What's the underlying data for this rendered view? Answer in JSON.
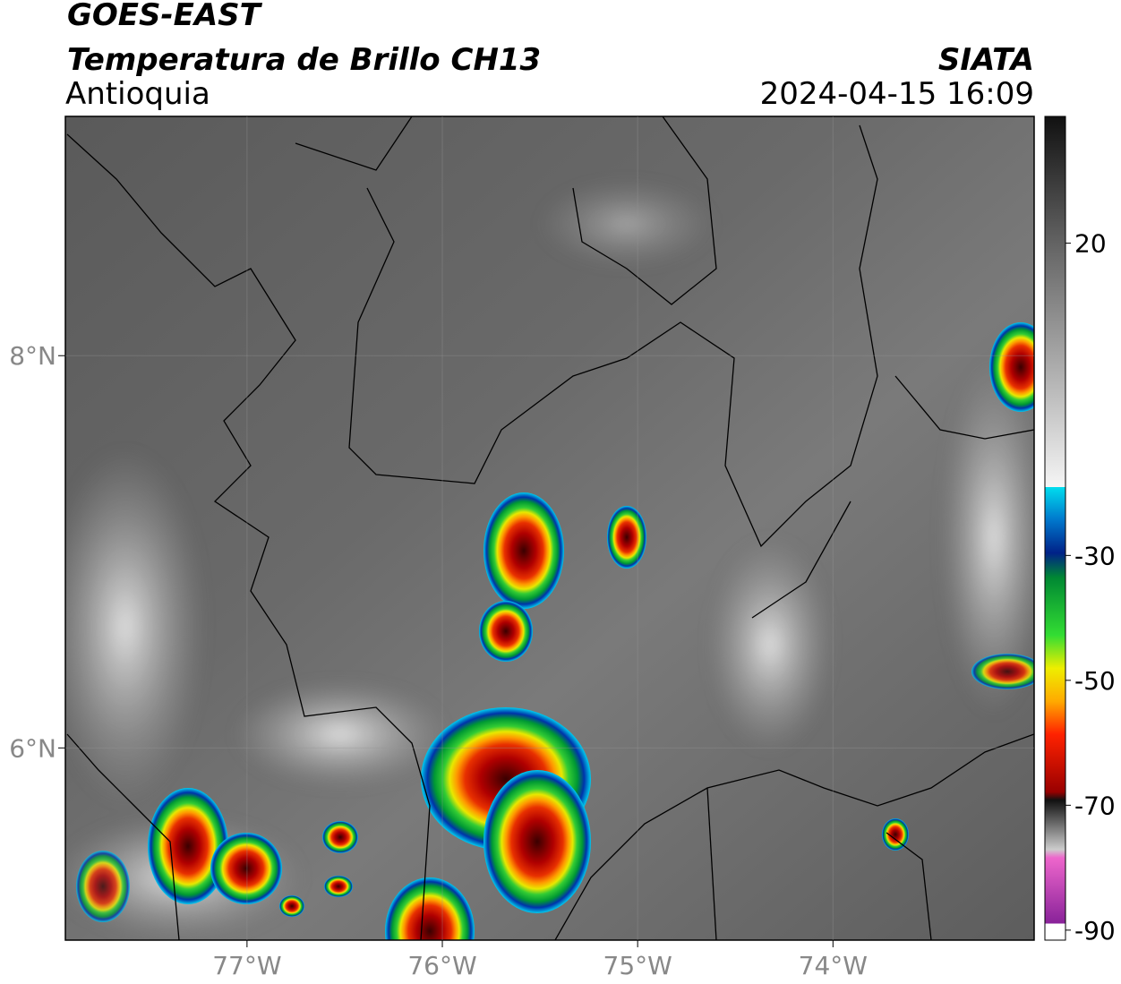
{
  "header": {
    "title": "GOES-EAST",
    "subtitle": "Temperatura de Brillo CH13",
    "region": "Antioquia",
    "source": "SIATA",
    "datetime": "2024-04-15 16:09"
  },
  "map": {
    "xlim": [
      -77.93,
      -72.97
    ],
    "ylim": [
      5.02,
      9.22
    ],
    "xticks": [
      {
        "value": -77,
        "label": "77°W"
      },
      {
        "value": -76,
        "label": "76°W"
      },
      {
        "value": -75,
        "label": "75°W"
      },
      {
        "value": -74,
        "label": "74°W"
      }
    ],
    "yticks": [
      {
        "value": 8,
        "label": "8°N"
      },
      {
        "value": 6,
        "label": "6°N"
      }
    ],
    "grid": true
  },
  "colorbar": {
    "clim": [
      -91.6,
      40.3
    ],
    "ticks": [
      20,
      -30,
      -50,
      -70,
      -90
    ]
  }
}
